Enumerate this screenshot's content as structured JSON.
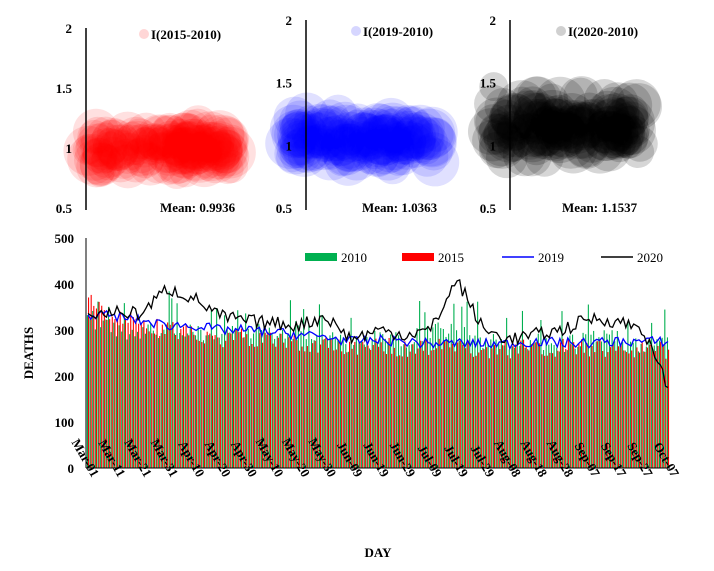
{
  "chart_data": [
    {
      "type": "scatter",
      "id": "panel-1",
      "legend": "I(2015-2010)",
      "mean_label": "Mean: 0.9936",
      "mean": 0.9936,
      "ylim": [
        0.5,
        2
      ],
      "yticks": [
        "0.5",
        "1",
        "1.5",
        "2"
      ],
      "color": "#ff0000",
      "spread": 0.22
    },
    {
      "type": "scatter",
      "id": "panel-2",
      "legend": "I(2019-2010)",
      "mean_label": "Mean: 1.0363",
      "mean": 1.0363,
      "ylim": [
        0.5,
        2
      ],
      "yticks": [
        "0.5",
        "1",
        "1.5",
        "2"
      ],
      "color": "#0000ff",
      "spread": 0.25
    },
    {
      "type": "scatter",
      "id": "panel-3",
      "legend": "I(2020-2010)",
      "mean_label": "Mean: 1.1537",
      "mean": 1.1537,
      "ylim": [
        0.5,
        2
      ],
      "yticks": [
        "0.5",
        "1",
        "1.5",
        "2"
      ],
      "color": "#000000",
      "spread": 0.33
    },
    {
      "type": "bar",
      "id": "deaths-panel",
      "title": "",
      "xlabel": "DAY",
      "ylabel": "DEATHS",
      "ylim": [
        0,
        500
      ],
      "yticks": [
        "0",
        "100",
        "200",
        "300",
        "400",
        "500"
      ],
      "categories": [
        "Mar-01",
        "Mar-11",
        "Mar-21",
        "Mar-31",
        "Apr-10",
        "Apr-20",
        "Apr-30",
        "May-10",
        "May-20",
        "May-30",
        "Jun-09",
        "Jun-19",
        "Jun-29",
        "Jul-09",
        "Jul-19",
        "Jul-29",
        "Aug-08",
        "Aug-18",
        "Aug-28",
        "Sep-07",
        "Sep-17",
        "Sep-27",
        "Oct-07"
      ],
      "series": [
        {
          "name": "2010",
          "kind": "bar",
          "color": "#00b050",
          "values": [
            330,
            300,
            290,
            305,
            300,
            285,
            295,
            300,
            300,
            285,
            270,
            280,
            280,
            300,
            295,
            280,
            270,
            275,
            270,
            280,
            280,
            265,
            270
          ]
        },
        {
          "name": "2015",
          "kind": "bar",
          "color": "#ff0000",
          "values": [
            360,
            330,
            315,
            300,
            290,
            280,
            285,
            275,
            270,
            265,
            260,
            265,
            260,
            262,
            262,
            258,
            258,
            262,
            262,
            260,
            262,
            260,
            255
          ]
        },
        {
          "name": "2019",
          "kind": "line",
          "color": "#0000ff",
          "values": [
            335,
            330,
            320,
            310,
            310,
            300,
            300,
            295,
            290,
            285,
            275,
            278,
            275,
            270,
            272,
            270,
            270,
            275,
            272,
            272,
            275,
            275,
            275
          ]
        },
        {
          "name": "2020",
          "kind": "line",
          "color": "#000000",
          "values": [
            330,
            340,
            335,
            390,
            370,
            330,
            320,
            315,
            310,
            330,
            280,
            300,
            290,
            300,
            410,
            300,
            280,
            290,
            300,
            325,
            320,
            305,
            175
          ]
        }
      ]
    }
  ]
}
